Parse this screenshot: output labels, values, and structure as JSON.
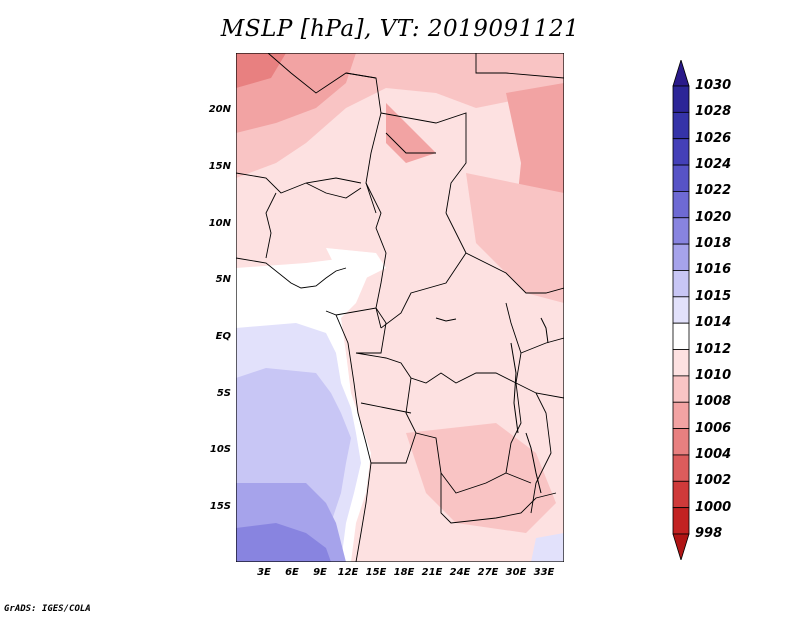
{
  "title": "MSLP [hPa], VT: 2019091121",
  "map": {
    "lat_labels": [
      "20N",
      "15N",
      "10N",
      "5N",
      "EQ",
      "5S",
      "10S",
      "15S"
    ],
    "lon_labels": [
      "3E",
      "6E",
      "9E",
      "12E",
      "15E",
      "18E",
      "21E",
      "24E",
      "27E",
      "30E",
      "33E"
    ]
  },
  "colorbar": {
    "labels": [
      "1030",
      "1028",
      "1026",
      "1024",
      "1022",
      "1020",
      "1018",
      "1016",
      "1015",
      "1014",
      "1012",
      "1010",
      "1008",
      "1006",
      "1004",
      "1002",
      "1000",
      "998"
    ],
    "colors": [
      "#2a1a8a",
      "#2c2597",
      "#3533a8",
      "#4440b8",
      "#5753c6",
      "#6e6ad4",
      "#8884e0",
      "#a6a3eb",
      "#c8c6f5",
      "#e2e1fb",
      "#ffffff",
      "#fde1e1",
      "#f9c4c4",
      "#f2a3a3",
      "#e88080",
      "#dc5c5c",
      "#cf3a3a",
      "#c22222",
      "#b01515"
    ]
  },
  "footer": "GrADS: IGES/COLA"
}
